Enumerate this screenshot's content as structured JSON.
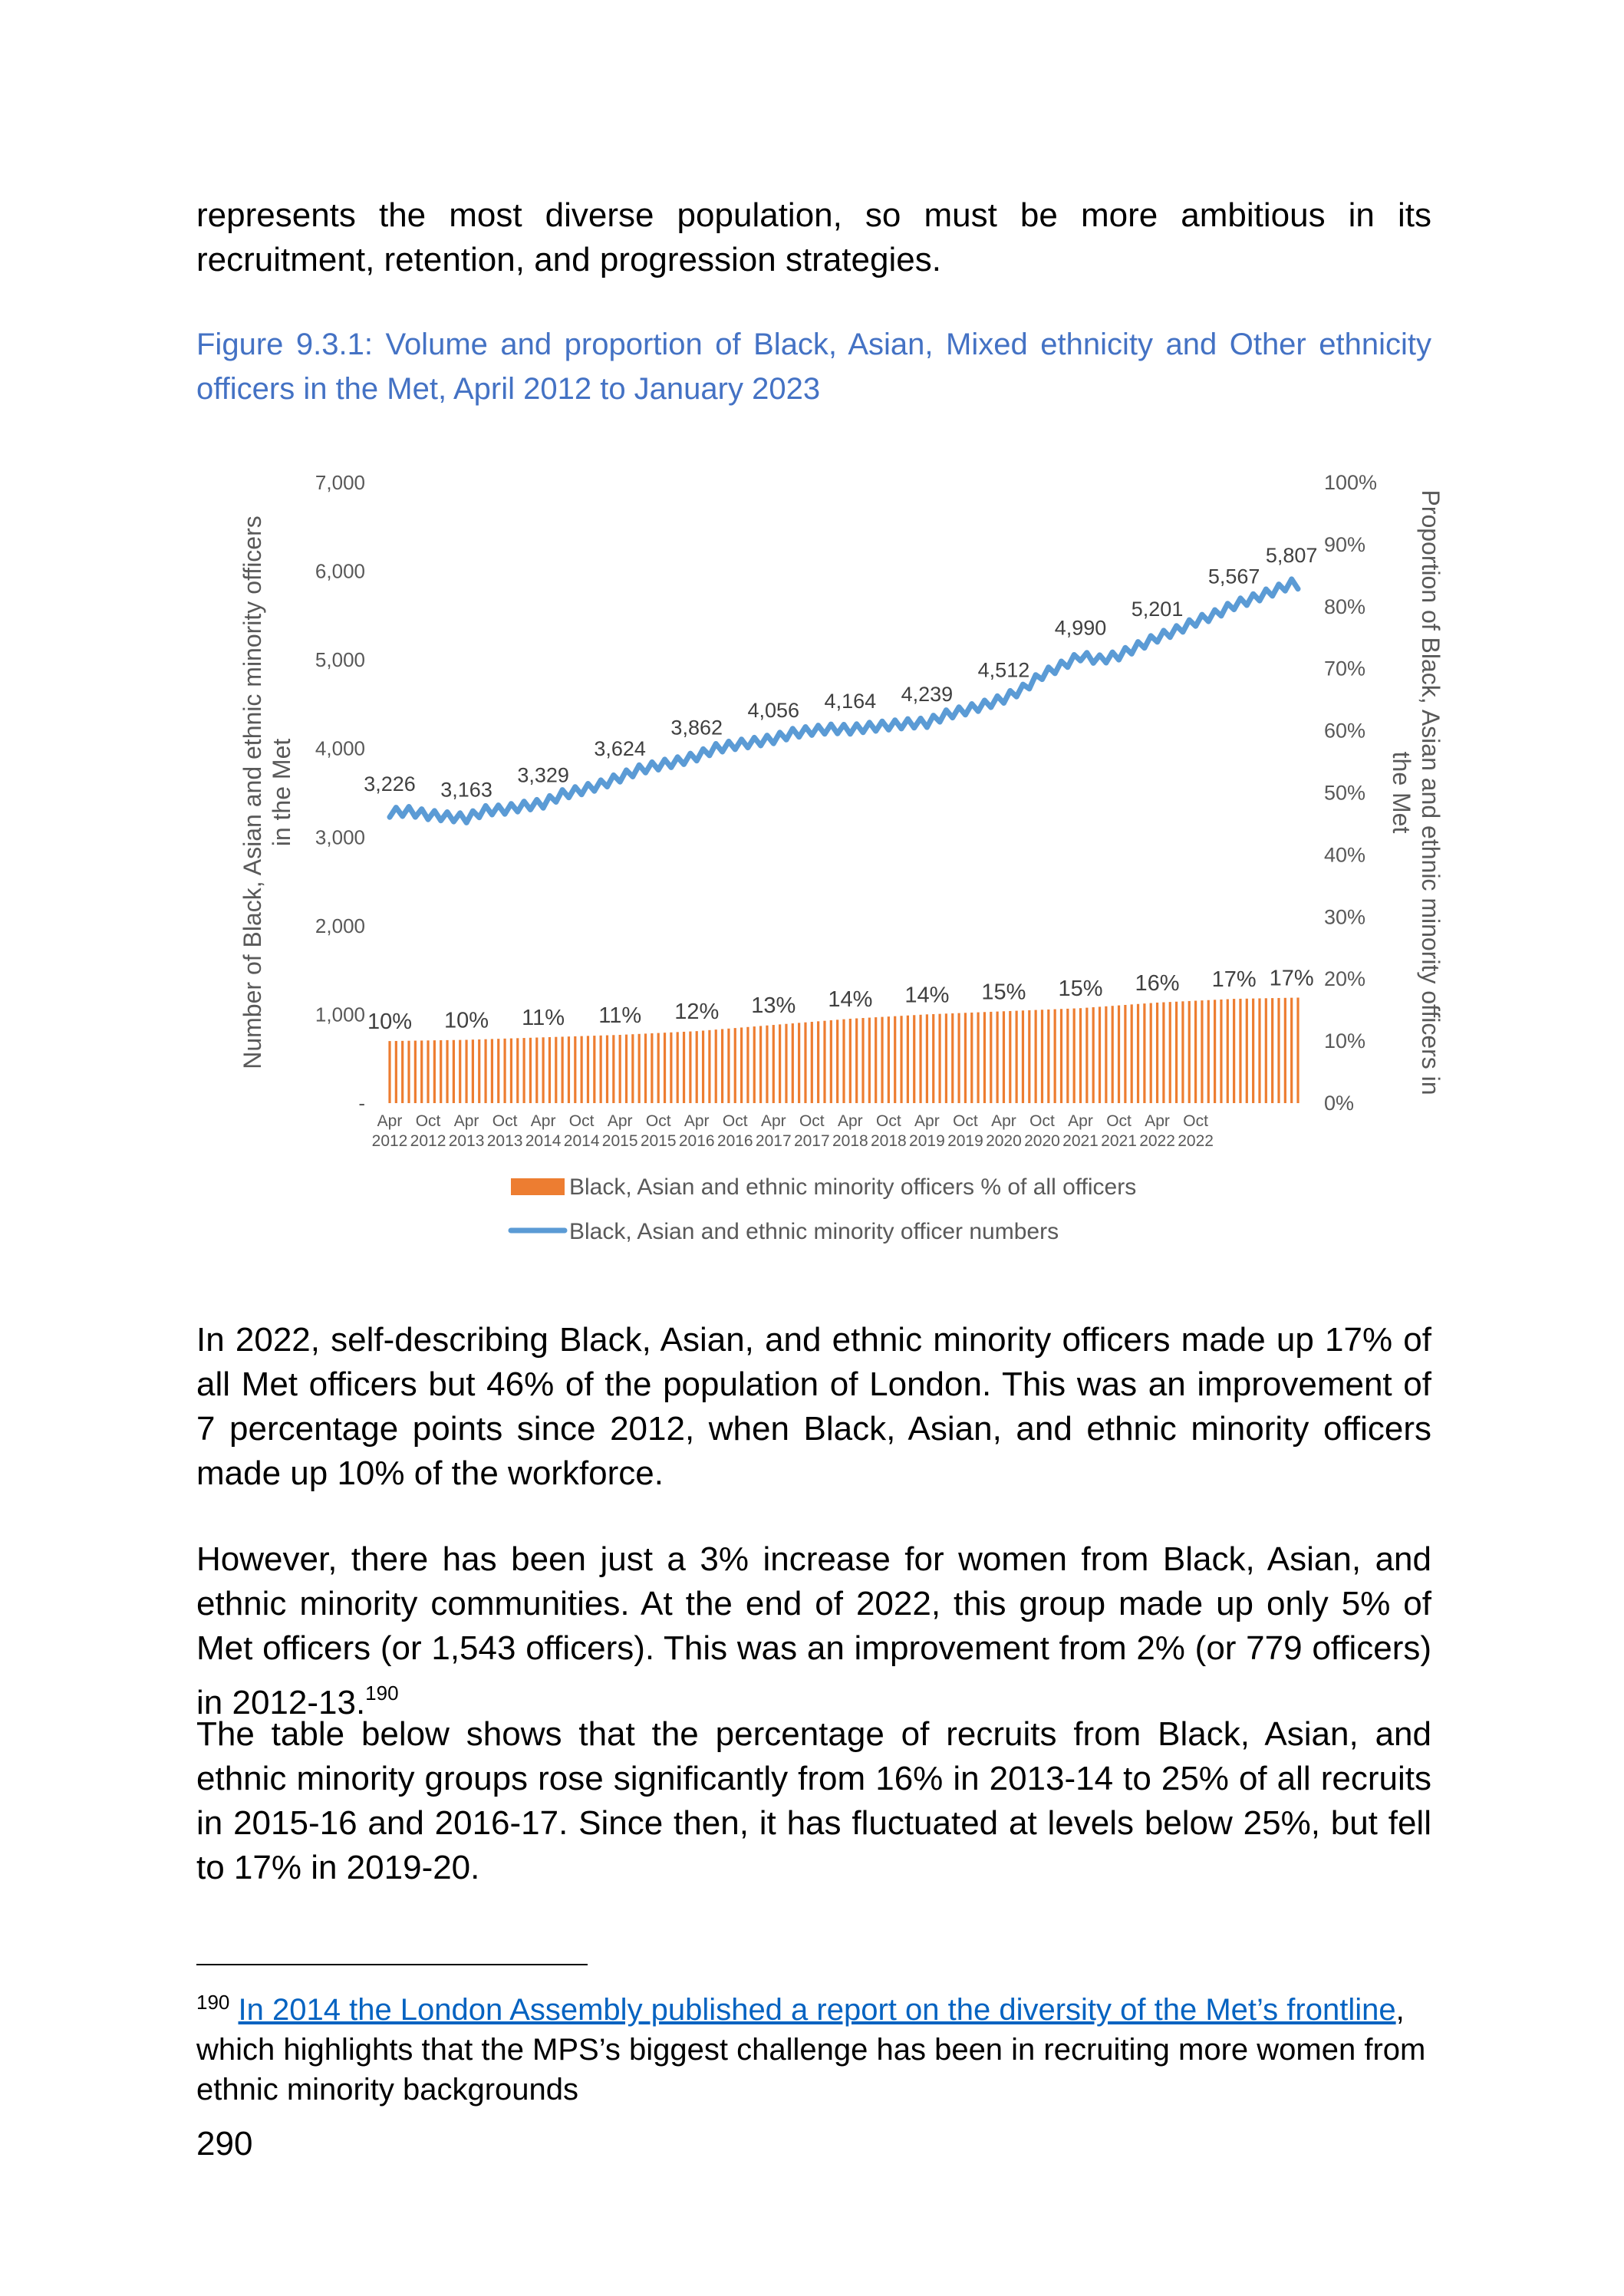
{
  "intro_text": "represents the most diverse population, so must be more ambitious in its recruitment, retention, and progression strategies.",
  "figure_caption": "Figure 9.3.1: Volume and proportion of Black, Asian, Mixed ethnicity and Other ethnicity officers in the Met, April 2012 to January 2023",
  "colors": {
    "numbers_line": "#5b9bd5",
    "percent_bars": "#ed7d31",
    "caption": "#4472c4",
    "axis_text": "#595959"
  },
  "chart_data": {
    "type": "bar+line",
    "left_axis_label_line1": "Number of Black, Asian and ethnic minority officers",
    "left_axis_label_line2": "in the Met",
    "right_axis_label_line1": "Proportion of Black, Asian and ethnic minority officers in",
    "right_axis_label_line2": "the Met",
    "left_ylim": [
      0,
      7000
    ],
    "left_ticks": [
      "-",
      "1,000",
      "2,000",
      "3,000",
      "4,000",
      "5,000",
      "6,000",
      "7,000"
    ],
    "right_ylim": [
      0,
      100
    ],
    "right_ticks": [
      "0%",
      "10%",
      "20%",
      "30%",
      "40%",
      "50%",
      "60%",
      "70%",
      "80%",
      "90%",
      "100%"
    ],
    "x_ticks_month": [
      "Apr",
      "Oct",
      "Apr",
      "Oct",
      "Apr",
      "Oct",
      "Apr",
      "Oct",
      "Apr",
      "Oct",
      "Apr",
      "Oct",
      "Apr",
      "Oct",
      "Apr",
      "Oct",
      "Apr",
      "Oct",
      "Apr",
      "Oct",
      "Apr",
      "Oct"
    ],
    "x_ticks_year": [
      "2012",
      "2012",
      "2013",
      "2013",
      "2014",
      "2014",
      "2015",
      "2015",
      "2016",
      "2016",
      "2017",
      "2017",
      "2018",
      "2018",
      "2019",
      "2019",
      "2020",
      "2020",
      "2021",
      "2021",
      "2022",
      "2022"
    ],
    "number_labels": [
      {
        "month": 0,
        "text": "3,226"
      },
      {
        "month": 12,
        "text": "3,163"
      },
      {
        "month": 24,
        "text": "3,329"
      },
      {
        "month": 36,
        "text": "3,624"
      },
      {
        "month": 48,
        "text": "3,862"
      },
      {
        "month": 60,
        "text": "4,056"
      },
      {
        "month": 72,
        "text": "4,164"
      },
      {
        "month": 84,
        "text": "4,239"
      },
      {
        "month": 96,
        "text": "4,512"
      },
      {
        "month": 108,
        "text": "4,990"
      },
      {
        "month": 120,
        "text": "5,201"
      },
      {
        "month": 132,
        "text": "5,567"
      },
      {
        "month": 141,
        "text": "5,807"
      }
    ],
    "percent_labels": [
      {
        "month": 0,
        "text": "10%"
      },
      {
        "month": 12,
        "text": "10%"
      },
      {
        "month": 24,
        "text": "11%"
      },
      {
        "month": 36,
        "text": "11%"
      },
      {
        "month": 48,
        "text": "12%"
      },
      {
        "month": 60,
        "text": "13%"
      },
      {
        "month": 72,
        "text": "14%"
      },
      {
        "month": 84,
        "text": "14%"
      },
      {
        "month": 96,
        "text": "15%"
      },
      {
        "month": 108,
        "text": "15%"
      },
      {
        "month": 120,
        "text": "16%"
      },
      {
        "month": 132,
        "text": "17%"
      },
      {
        "month": 141,
        "text": "17%"
      }
    ],
    "numbers_anchor": [
      [
        0,
        3226
      ],
      [
        3,
        3240
      ],
      [
        6,
        3200
      ],
      [
        9,
        3180
      ],
      [
        12,
        3163
      ],
      [
        15,
        3250
      ],
      [
        18,
        3260
      ],
      [
        21,
        3300
      ],
      [
        24,
        3329
      ],
      [
        27,
        3430
      ],
      [
        30,
        3480
      ],
      [
        33,
        3540
      ],
      [
        36,
        3624
      ],
      [
        39,
        3710
      ],
      [
        42,
        3760
      ],
      [
        45,
        3800
      ],
      [
        48,
        3862
      ],
      [
        51,
        3950
      ],
      [
        54,
        3990
      ],
      [
        57,
        4020
      ],
      [
        60,
        4056
      ],
      [
        63,
        4120
      ],
      [
        66,
        4150
      ],
      [
        69,
        4170
      ],
      [
        72,
        4164
      ],
      [
        75,
        4190
      ],
      [
        78,
        4210
      ],
      [
        81,
        4230
      ],
      [
        84,
        4239
      ],
      [
        87,
        4330
      ],
      [
        90,
        4380
      ],
      [
        93,
        4440
      ],
      [
        96,
        4512
      ],
      [
        99,
        4620
      ],
      [
        102,
        4780
      ],
      [
        105,
        4880
      ],
      [
        108,
        4990
      ],
      [
        111,
        4950
      ],
      [
        114,
        5000
      ],
      [
        117,
        5100
      ],
      [
        120,
        5201
      ],
      [
        123,
        5280
      ],
      [
        126,
        5380
      ],
      [
        129,
        5460
      ],
      [
        132,
        5567
      ],
      [
        135,
        5640
      ],
      [
        138,
        5720
      ],
      [
        141,
        5807
      ],
      [
        142,
        5800
      ]
    ],
    "percent_anchor": [
      [
        0,
        10.0
      ],
      [
        12,
        10.2
      ],
      [
        24,
        10.6
      ],
      [
        36,
        11.0
      ],
      [
        48,
        11.6
      ],
      [
        60,
        12.6
      ],
      [
        72,
        13.6
      ],
      [
        84,
        14.3
      ],
      [
        96,
        14.8
      ],
      [
        108,
        15.3
      ],
      [
        120,
        16.2
      ],
      [
        132,
        16.8
      ],
      [
        142,
        17.0
      ]
    ],
    "legend": [
      {
        "name": "Black, Asian and ethnic minority officers % of all officers",
        "kind": "bar"
      },
      {
        "name": "Black, Asian and ethnic minority officer numbers",
        "kind": "line"
      }
    ]
  },
  "body_paragraphs": [
    "In 2022, self-describing Black, Asian, and ethnic minority officers made up 17% of all Met officers but 46% of the population of London. This was an improvement of 7 percentage points since 2012, when Black, Asian, and ethnic minority officers made up 10% of the workforce.",
    "However, there has been just a 3% increase for women from Black, Asian, and ethnic minority communities. At the end of 2022, this group made up only 5% of Met officers (or 1,543 officers). This was an improvement from 2% (or 779 officers) in 2012-13.",
    "The table below shows that the percentage of recruits from Black, Asian, and ethnic minority groups rose significantly from 16% in 2013-14 to 25% of all recruits in 2015-16 and 2016-17. Since then, it has fluctuated at levels below 25%, but fell to 17% in 2019-20."
  ],
  "footnote_ref": "190",
  "footnote": {
    "number": "190",
    "link_text": "In 2014 the London Assembly published a report on the diversity of the Met’s frontline",
    "rest_text": ", which highlights that the MPS’s biggest challenge has been in recruiting more women from ethnic minority backgrounds"
  },
  "page_number": "290"
}
